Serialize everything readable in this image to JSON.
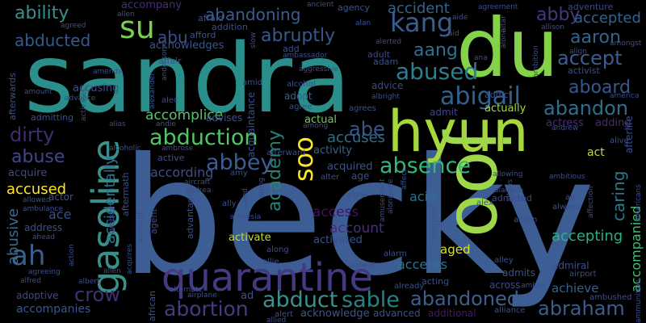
{
  "words": [
    {
      "text": "sandra",
      "color": "#2a8f8a"
    },
    {
      "text": "becky",
      "color": "#3d5d95"
    },
    {
      "text": "du",
      "color": "#84d249"
    },
    {
      "text": "hyun",
      "color": "#a6d83d"
    },
    {
      "text": "joo",
      "color": "#9ed84a"
    },
    {
      "text": "quarantine",
      "color": "#443a83"
    },
    {
      "text": "gasoline",
      "color": "#3b8f8b"
    },
    {
      "text": "abduction",
      "color": "#52c569"
    },
    {
      "text": "kang",
      "color": "#3b5d8d"
    },
    {
      "text": "abduct",
      "color": "#3d8f8e"
    },
    {
      "text": "sable",
      "color": "#2c8080"
    },
    {
      "text": "abortion",
      "color": "#3f3e80"
    },
    {
      "text": "abandoned",
      "color": "#3e5f8c"
    },
    {
      "text": "abraham",
      "color": "#3b5d8d"
    },
    {
      "text": "crow",
      "color": "#42306f"
    },
    {
      "text": "ah",
      "color": "#3a5f8c"
    },
    {
      "text": "abused",
      "color": "#2f7d8e"
    },
    {
      "text": "abigail",
      "color": "#34608c"
    },
    {
      "text": "abandon",
      "color": "#2e6e8e"
    },
    {
      "text": "absence",
      "color": "#35b779"
    },
    {
      "text": "abbey",
      "color": "#3d5d92"
    },
    {
      "text": "abe",
      "color": "#39558c"
    },
    {
      "text": "su",
      "color": "#7ad151"
    },
    {
      "text": "soo",
      "color": "#fde725"
    },
    {
      "text": "aang",
      "color": "#2e6f8e"
    },
    {
      "text": "accept",
      "color": "#3b5d8d"
    },
    {
      "text": "aboard",
      "color": "#38578c"
    },
    {
      "text": "aaron",
      "color": "#33638d"
    },
    {
      "text": "abby",
      "color": "#46377f"
    },
    {
      "text": "accepted",
      "color": "#33628d"
    },
    {
      "text": "accepting",
      "color": "#2ab07f"
    },
    {
      "text": "accompanied",
      "color": "#44bf70"
    },
    {
      "text": "caring",
      "color": "#2a788e"
    },
    {
      "text": "abrupt",
      "color": "#3b528b"
    },
    {
      "text": "abruptly",
      "color": "#37598c"
    },
    {
      "text": "abandoning",
      "color": "#3b5d8d"
    },
    {
      "text": "ability",
      "color": "#3c8e8c"
    },
    {
      "text": "abducted",
      "color": "#38598c"
    },
    {
      "text": "abu",
      "color": "#3d4e8a"
    },
    {
      "text": "accident",
      "color": "#33638d"
    },
    {
      "text": "accomplice",
      "color": "#54c568"
    },
    {
      "text": "dirty",
      "color": "#3e2e6b"
    },
    {
      "text": "abuse",
      "color": "#404688"
    },
    {
      "text": "accused",
      "color": "#fde725"
    },
    {
      "text": "abusive",
      "color": "#3d6a8e"
    },
    {
      "text": "accidentally",
      "color": "#2c728e"
    },
    {
      "text": "academy",
      "color": "#2c8079"
    },
    {
      "text": "accuses",
      "color": "#2e6c8e"
    },
    {
      "text": "according",
      "color": "#3d4f8a"
    },
    {
      "text": "access",
      "color": "#471164"
    },
    {
      "text": "account",
      "color": "#472d7b"
    },
    {
      "text": "activated",
      "color": "#3b528b"
    },
    {
      "text": "accompany",
      "color": "#472d7b"
    },
    {
      "text": "accepts",
      "color": "#2c728e"
    },
    {
      "text": "aged",
      "color": "#dde318"
    },
    {
      "text": "achieve",
      "color": "#33638d"
    },
    {
      "text": "accompanies",
      "color": "#3a548c"
    },
    {
      "text": "acknowledges",
      "color": "#3a548c"
    },
    {
      "text": "acknowledge",
      "color": "#39568c"
    },
    {
      "text": "advanced",
      "color": "#3c4f8a"
    },
    {
      "text": "additional",
      "color": "#48186a"
    },
    {
      "text": "activate",
      "color": "#c2df23"
    },
    {
      "text": "acid",
      "color": "#2c728e"
    },
    {
      "text": "acquired",
      "color": "#3b528b"
    },
    {
      "text": "activity",
      "color": "#33638d"
    },
    {
      "text": "actual",
      "color": "#6ece58"
    },
    {
      "text": "adopt",
      "color": "#33638d"
    },
    {
      "text": "advice",
      "color": "#3f4889"
    },
    {
      "text": "admit",
      "color": "#404688"
    },
    {
      "text": "actually",
      "color": "#a0da39"
    },
    {
      "text": "actress",
      "color": "#472d7b"
    },
    {
      "text": "adding",
      "color": "#482878"
    },
    {
      "text": "act",
      "color": "#bddf26"
    },
    {
      "text": "adam",
      "color": "#3a548c"
    },
    {
      "text": "adult",
      "color": "#3f4889"
    },
    {
      "text": "agency",
      "color": "#3a548c"
    },
    {
      "text": "adventure",
      "color": "#3f4889"
    },
    {
      "text": "activist",
      "color": "#3c4f8a"
    },
    {
      "text": "addict",
      "color": "#3a548c"
    },
    {
      "text": "admitted",
      "color": "#3f4889"
    },
    {
      "text": "admits",
      "color": "#3c4f8a"
    },
    {
      "text": "across",
      "color": "#3f4889"
    },
    {
      "text": "acting",
      "color": "#3c4f8a"
    },
    {
      "text": "adopted",
      "color": "#39568c"
    },
    {
      "text": "ace",
      "color": "#3c4f8a"
    },
    {
      "text": "acquire",
      "color": "#3f4889"
    },
    {
      "text": "actor",
      "color": "#3c4f8a"
    },
    {
      "text": "address",
      "color": "#3c4f8a"
    },
    {
      "text": "admiral",
      "color": "#3c4f8a"
    },
    {
      "text": "adoptive",
      "color": "#3f4889"
    },
    {
      "text": "afraid",
      "color": "#3c4f8a"
    },
    {
      "text": "affair",
      "color": "#3c4f8a"
    },
    {
      "text": "afford",
      "color": "#3c4f8a"
    },
    {
      "text": "addition",
      "color": "#3c4f8a"
    },
    {
      "text": "add",
      "color": "#3c4f8a"
    },
    {
      "text": "accusing",
      "color": "#3c4f8a"
    },
    {
      "text": "admitting",
      "color": "#3c4f8a"
    },
    {
      "text": "afterwards",
      "color": "#3c4f8a"
    },
    {
      "text": "afterlife",
      "color": "#3c4f8a"
    },
    {
      "text": "alive",
      "color": "#3c4f8a"
    },
    {
      "text": "african",
      "color": "#3c4f8a"
    },
    {
      "text": "ad",
      "color": "#3c4f8a"
    },
    {
      "text": "advantage",
      "color": "#3c4f8a"
    },
    {
      "text": "agent",
      "color": "#3c4f8a"
    },
    {
      "text": "alert",
      "color": "#3c4f8a"
    },
    {
      "text": "alliance",
      "color": "#3c4f8a"
    },
    {
      "text": "ambushed",
      "color": "#3c4f8a"
    },
    {
      "text": "airport",
      "color": "#3c4f8a"
    },
    {
      "text": "alley",
      "color": "#3c4f8a"
    },
    {
      "text": "alison",
      "color": "#3c4f8a"
    },
    {
      "text": "always",
      "color": "#3c4f8a"
    },
    {
      "text": "ali",
      "color": "#3c4f8a"
    },
    {
      "text": "alex",
      "color": "#3c4f8a"
    },
    {
      "text": "along",
      "color": "#3c4f8a"
    },
    {
      "text": "allie",
      "color": "#3c4f8a"
    },
    {
      "text": "ally",
      "color": "#3c4f8a"
    },
    {
      "text": "alarm",
      "color": "#3c4f8a"
    },
    {
      "text": "already",
      "color": "#3c4f8a"
    },
    {
      "text": "alter",
      "color": "#3c4f8a"
    },
    {
      "text": "age",
      "color": "#3c4f8a"
    },
    {
      "text": "active",
      "color": "#3c4f8a"
    },
    {
      "text": "aftermath",
      "color": "#3c4f8a"
    },
    {
      "text": "amy",
      "color": "#3c4f8a"
    },
    {
      "text": "agree",
      "color": "#3c4f8a"
    },
    {
      "text": "among",
      "color": "#3c4f8a"
    },
    {
      "text": "amid",
      "color": "#3c4f8a"
    },
    {
      "text": "alec",
      "color": "#3c4f8a"
    },
    {
      "text": "alias",
      "color": "#3c4f8a"
    },
    {
      "text": "andie",
      "color": "#3c4f8a"
    },
    {
      "text": "andrew",
      "color": "#3c4f8a"
    },
    {
      "text": "advises",
      "color": "#3c4f8a"
    },
    {
      "text": "acquaintance",
      "color": "#3c4f8a"
    },
    {
      "text": "alcohol",
      "color": "#3c4f8a"
    },
    {
      "text": "afterward",
      "color": "#3c4f8a"
    },
    {
      "text": "agrees",
      "color": "#3c4f8a"
    },
    {
      "text": "ambrose",
      "color": "#3c4f8a"
    },
    {
      "text": "alcoholic",
      "color": "#3c4f8a"
    },
    {
      "text": "america",
      "color": "#3c4f8a"
    },
    {
      "text": "align",
      "color": "#3c4f8a"
    },
    {
      "text": "amongst",
      "color": "#3c4f8a"
    },
    {
      "text": "allison",
      "color": "#3c4f8a"
    },
    {
      "text": "albright",
      "color": "#3c4f8a"
    },
    {
      "text": "ambassador",
      "color": "#3c4f8a"
    },
    {
      "text": "aggressive",
      "color": "#3c4f8a"
    },
    {
      "text": "alan",
      "color": "#3c4f8a"
    },
    {
      "text": "alerted",
      "color": "#3c4f8a"
    },
    {
      "text": "ancient",
      "color": "#3c4f8a"
    },
    {
      "text": "aid",
      "color": "#3c4f8a"
    },
    {
      "text": "aide",
      "color": "#3c4f8a"
    },
    {
      "text": "allen",
      "color": "#3c4f8a"
    },
    {
      "text": "agreed",
      "color": "#3c4f8a"
    },
    {
      "text": "advance",
      "color": "#3c4f8a"
    },
    {
      "text": "activates",
      "color": "#3c4f8a"
    },
    {
      "text": "amends",
      "color": "#3c4f8a"
    },
    {
      "text": "amount",
      "color": "#3c4f8a"
    },
    {
      "text": "allowing",
      "color": "#3c4f8a"
    },
    {
      "text": "alamein",
      "color": "#3c4f8a"
    },
    {
      "text": "allowed",
      "color": "#3c4f8a"
    },
    {
      "text": "ambulance",
      "color": "#3c4f8a"
    },
    {
      "text": "ahead",
      "color": "#3c4f8a"
    },
    {
      "text": "alfred",
      "color": "#3c4f8a"
    },
    {
      "text": "agreeing",
      "color": "#3c4f8a"
    },
    {
      "text": "action",
      "color": "#3c4f8a"
    },
    {
      "text": "albert",
      "color": "#3c4f8a"
    },
    {
      "text": "alien",
      "color": "#3c4f8a"
    },
    {
      "text": "acquires",
      "color": "#3c4f8a"
    },
    {
      "text": "alternate",
      "color": "#3c4f8a"
    },
    {
      "text": "airplane",
      "color": "#3c4f8a"
    },
    {
      "text": "although",
      "color": "#3c4f8a"
    },
    {
      "text": "ambush",
      "color": "#3c4f8a"
    },
    {
      "text": "aircraft",
      "color": "#3c4f8a"
    },
    {
      "text": "andrea",
      "color": "#3c4f8a"
    },
    {
      "text": "alpha",
      "color": "#3c4f8a"
    },
    {
      "text": "aging",
      "color": "#3c4f8a"
    },
    {
      "text": "aided",
      "color": "#3c4f8a"
    },
    {
      "text": "airfield",
      "color": "#3c4f8a"
    },
    {
      "text": "amusement",
      "color": "#3c4f8a"
    },
    {
      "text": "affect",
      "color": "#3c4f8a"
    },
    {
      "text": "alongside",
      "color": "#3c4f8a"
    },
    {
      "text": "ana",
      "color": "#3c4f8a"
    },
    {
      "text": "ambition",
      "color": "#3c4f8a"
    },
    {
      "text": "allows",
      "color": "#3c4f8a"
    },
    {
      "text": "ambitious",
      "color": "#3c4f8a"
    },
    {
      "text": "affection",
      "color": "#3c4f8a"
    },
    {
      "text": "ammunition",
      "color": "#3c4f8a"
    },
    {
      "text": "americans",
      "color": "#3c4f8a"
    },
    {
      "text": "alone",
      "color": "#3c4f8a"
    },
    {
      "text": "altar",
      "color": "#3c4f8a"
    },
    {
      "text": "agreement",
      "color": "#3c4f8a"
    },
    {
      "text": "alexander",
      "color": "#3c4f8a"
    },
    {
      "text": "anderson",
      "color": "#3c4f8a"
    },
    {
      "text": "allied",
      "color": "#3c4f8a"
    },
    {
      "text": "amnesia",
      "color": "#3c4f8a"
    },
    {
      "text": "slow",
      "color": "#3c4f8a"
    },
    {
      "text": "ambler",
      "color": "#3c4f8a"
    }
  ]
}
